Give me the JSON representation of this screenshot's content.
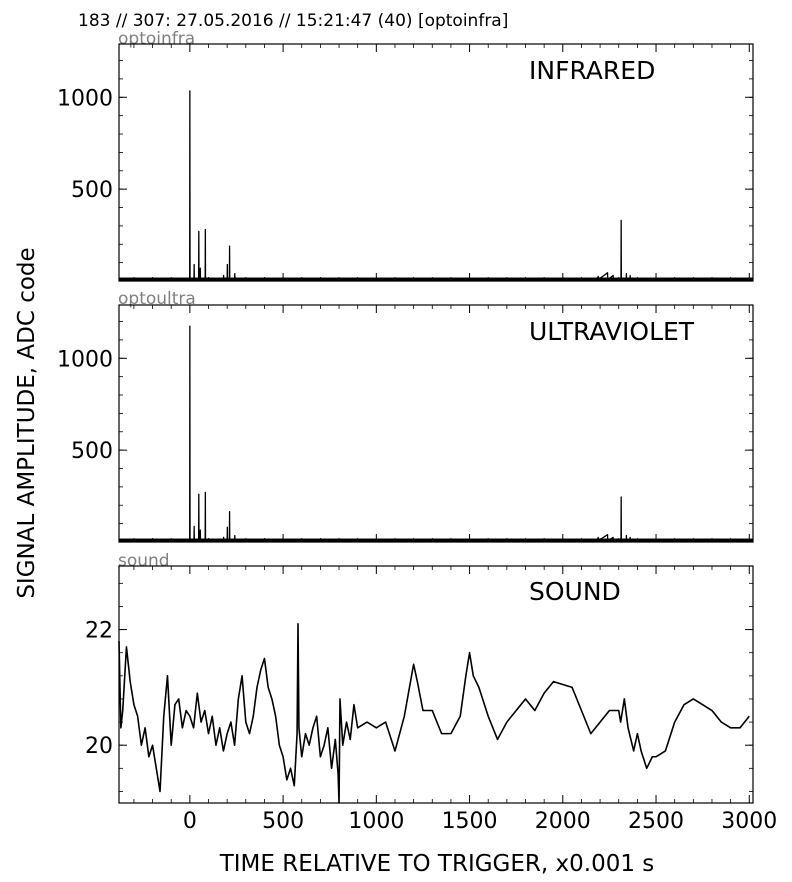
{
  "header": "183 // 307:   27.05.2016 // 15:21:47 (40)  [optoinfra]",
  "ylabel": "SIGNAL AMPLITUDE,  ADC code",
  "xlabel": "TIME RELATIVE TO TRIGGER,   x0.001 s",
  "xlim": [
    -380,
    3020
  ],
  "x_ticks": [
    "0",
    "500",
    "1000",
    "1500",
    "2000",
    "2500",
    "3000"
  ],
  "x_tick_values": [
    0,
    500,
    1000,
    1500,
    2000,
    2500,
    3000
  ],
  "chart_data": [
    {
      "type": "line",
      "channel": "optoinfra",
      "title": "INFRARED",
      "ylim": [
        0,
        1290
      ],
      "y_ticks": [
        "500",
        "1000"
      ],
      "y_tick_values": [
        500,
        1000
      ],
      "baseline": 8,
      "series": [
        {
          "x": [
            -380,
            -20,
            -2,
            -1,
            0,
            1,
            2,
            20,
            22,
            23,
            24,
            25,
            45,
            47,
            48,
            49,
            50,
            55,
            56,
            57,
            80,
            82,
            83,
            84,
            85,
            180,
            181,
            182,
            190,
            200,
            201,
            202,
            210,
            212,
            213,
            214,
            215,
            240,
            241,
            242,
            243,
            2180,
            2190,
            2191,
            2192,
            2240,
            2241,
            2242,
            2270,
            2271,
            2272,
            2310,
            2312,
            2313,
            2314,
            2315,
            2340,
            2341,
            2342,
            2360,
            2361,
            2362,
            3020
          ],
          "y": [
            8,
            8,
            8,
            8,
            1035,
            8,
            8,
            8,
            8,
            90,
            8,
            8,
            8,
            8,
            270,
            8,
            8,
            8,
            70,
            8,
            8,
            8,
            280,
            8,
            8,
            8,
            30,
            8,
            8,
            8,
            90,
            8,
            8,
            8,
            190,
            8,
            8,
            8,
            40,
            8,
            8,
            8,
            25,
            8,
            8,
            45,
            8,
            8,
            30,
            8,
            8,
            8,
            8,
            330,
            8,
            8,
            8,
            40,
            8,
            8,
            30,
            8,
            8
          ]
        }
      ]
    },
    {
      "type": "line",
      "channel": "optoultra",
      "title": "ULTRAVIOLET",
      "ylim": [
        0,
        1290
      ],
      "y_ticks": [
        "500",
        "1000"
      ],
      "y_tick_values": [
        500,
        1000
      ],
      "baseline": 8,
      "series": [
        {
          "x": [
            -380,
            -20,
            -2,
            -1,
            0,
            1,
            2,
            20,
            22,
            23,
            24,
            25,
            45,
            47,
            48,
            49,
            50,
            55,
            56,
            57,
            80,
            82,
            83,
            84,
            85,
            180,
            181,
            182,
            190,
            200,
            201,
            202,
            210,
            212,
            213,
            214,
            215,
            240,
            241,
            242,
            243,
            2180,
            2190,
            2191,
            2192,
            2240,
            2241,
            2242,
            2270,
            2271,
            2272,
            2310,
            2312,
            2313,
            2314,
            2315,
            2340,
            2341,
            2342,
            2360,
            2361,
            2362,
            3020
          ],
          "y": [
            8,
            8,
            8,
            8,
            1175,
            8,
            8,
            8,
            8,
            85,
            8,
            8,
            8,
            8,
            260,
            8,
            8,
            8,
            65,
            8,
            8,
            8,
            270,
            8,
            8,
            8,
            25,
            8,
            8,
            8,
            80,
            8,
            8,
            8,
            165,
            8,
            8,
            8,
            35,
            8,
            8,
            8,
            25,
            8,
            8,
            40,
            8,
            8,
            25,
            8,
            8,
            8,
            8,
            245,
            8,
            8,
            8,
            35,
            8,
            8,
            25,
            8,
            8
          ]
        }
      ]
    },
    {
      "type": "line",
      "channel": "sound",
      "title": "SOUND",
      "ylim": [
        19,
        23.1
      ],
      "y_ticks": [
        "20",
        "22"
      ],
      "y_tick_values": [
        20,
        22
      ],
      "series": [
        {
          "x": [
            -380,
            -370,
            -360,
            -340,
            -320,
            -300,
            -280,
            -260,
            -240,
            -220,
            -200,
            -180,
            -160,
            -140,
            -120,
            -100,
            -80,
            -60,
            -40,
            -20,
            0,
            20,
            40,
            60,
            80,
            100,
            120,
            140,
            160,
            180,
            200,
            220,
            240,
            260,
            280,
            300,
            320,
            340,
            360,
            380,
            400,
            420,
            440,
            460,
            480,
            500,
            520,
            540,
            560,
            575,
            580,
            585,
            600,
            620,
            640,
            660,
            680,
            700,
            720,
            740,
            760,
            780,
            795,
            800,
            805,
            820,
            840,
            860,
            880,
            900,
            950,
            1000,
            1050,
            1100,
            1150,
            1200,
            1220,
            1250,
            1300,
            1350,
            1400,
            1450,
            1480,
            1500,
            1520,
            1550,
            1600,
            1650,
            1700,
            1750,
            1800,
            1850,
            1900,
            1950,
            2000,
            2050,
            2100,
            2150,
            2200,
            2250,
            2300,
            2310,
            2330,
            2350,
            2380,
            2400,
            2420,
            2450,
            2480,
            2500,
            2550,
            2600,
            2650,
            2700,
            2750,
            2800,
            2850,
            2900,
            2950,
            3000
          ],
          "y": [
            21.8,
            20.3,
            20.6,
            21.7,
            21.1,
            20.7,
            20.5,
            20.0,
            20.3,
            19.8,
            20.0,
            19.6,
            19.2,
            20.5,
            21.2,
            20.0,
            20.7,
            20.8,
            20.3,
            20.6,
            20.5,
            20.3,
            20.9,
            20.4,
            20.6,
            20.2,
            20.5,
            20.0,
            20.3,
            19.9,
            20.2,
            20.4,
            20.0,
            20.8,
            21.2,
            20.4,
            20.2,
            20.5,
            21.0,
            21.3,
            21.5,
            21.0,
            20.8,
            20.5,
            20.0,
            19.8,
            19.4,
            19.6,
            19.3,
            20.2,
            22.1,
            20.3,
            19.8,
            20.2,
            20.0,
            20.3,
            20.5,
            19.8,
            20.0,
            20.3,
            19.6,
            20.1,
            19.5,
            19.0,
            20.8,
            20.0,
            20.4,
            20.1,
            20.7,
            20.3,
            20.4,
            20.3,
            20.4,
            19.9,
            20.5,
            21.4,
            21.1,
            20.6,
            20.6,
            20.2,
            20.2,
            20.5,
            21.2,
            21.6,
            21.2,
            21.0,
            20.5,
            20.1,
            20.4,
            20.6,
            20.8,
            20.6,
            20.9,
            21.1,
            21.05,
            21.0,
            20.6,
            20.2,
            20.4,
            20.6,
            20.6,
            20.4,
            20.8,
            20.3,
            19.9,
            20.2,
            19.9,
            19.6,
            19.8,
            19.8,
            19.9,
            20.4,
            20.7,
            20.8,
            20.7,
            20.6,
            20.4,
            20.3,
            20.3,
            20.5
          ]
        }
      ]
    }
  ]
}
